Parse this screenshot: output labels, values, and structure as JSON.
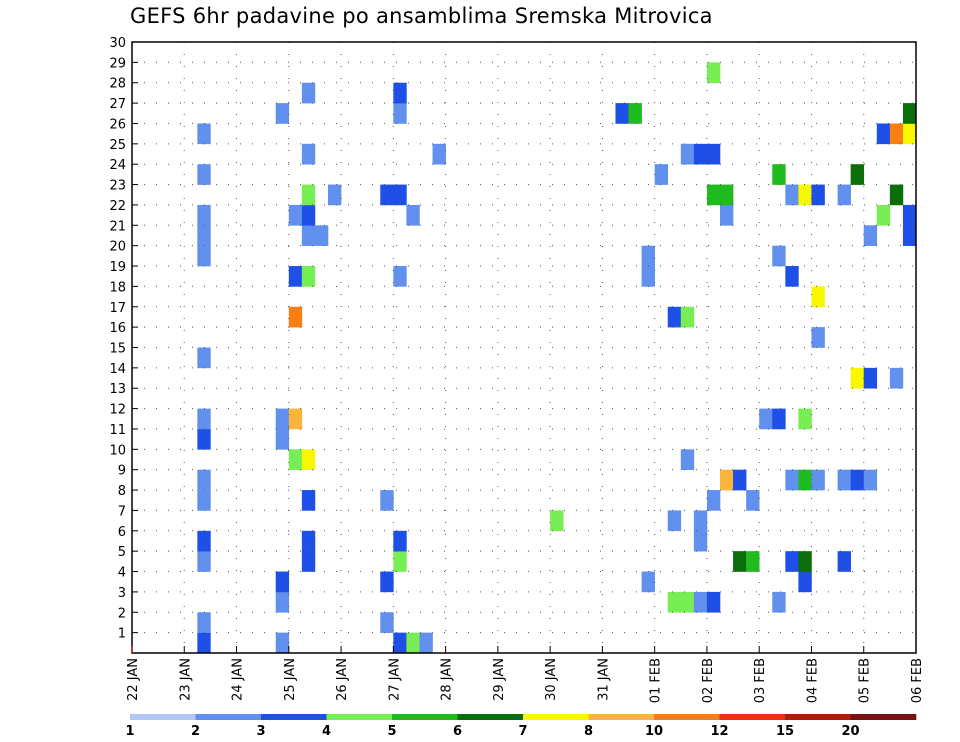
{
  "chart_data": {
    "type": "heatmap",
    "title": "GEFS 6hr padavine po ansamblima Sremska Mitrovica",
    "xlabel": "",
    "ylabel": "",
    "grid": true,
    "x_tick_labels": [
      "22 JAN",
      "23 JAN",
      "24 JAN",
      "25 JAN",
      "26 JAN",
      "27 JAN",
      "28 JAN",
      "29 JAN",
      "30 JAN",
      "31 JAN",
      "01 FEB",
      "02 FEB",
      "03 FEB",
      "04 FEB",
      "05 FEB",
      "06 FEB"
    ],
    "xlim": [
      0,
      60
    ],
    "x_unit": "6-hour steps from 22 JAN 00Z",
    "y_tick_labels": [
      "1",
      "2",
      "3",
      "4",
      "5",
      "6",
      "7",
      "8",
      "9",
      "10",
      "11",
      "12",
      "13",
      "14",
      "15",
      "16",
      "17",
      "18",
      "19",
      "20",
      "21",
      "22",
      "23",
      "24",
      "25",
      "26",
      "27",
      "28",
      "29",
      "30"
    ],
    "ylim": [
      0,
      30
    ],
    "colorbar": {
      "levels": [
        "1",
        "2",
        "3",
        "4",
        "5",
        "6",
        "7",
        "8",
        "10",
        "12",
        "15",
        "20"
      ],
      "colors": [
        "#b4c8f5",
        "#6190ef",
        "#1e4fe6",
        "#78ee55",
        "#1fbb1f",
        "#0a6e0a",
        "#f7f700",
        "#fcb43a",
        "#fb7e12",
        "#e63214",
        "#b31808",
        "#781212"
      ]
    },
    "cells": [
      {
        "t": 5,
        "m": 0,
        "v": 2
      },
      {
        "t": 5,
        "m": 1,
        "v": 1
      },
      {
        "t": 5,
        "m": 4,
        "v": 1
      },
      {
        "t": 5,
        "m": 5,
        "v": 2
      },
      {
        "t": 5,
        "m": 7,
        "v": 1
      },
      {
        "t": 5,
        "m": 8,
        "v": 1
      },
      {
        "t": 5,
        "m": 10,
        "v": 2
      },
      {
        "t": 5,
        "m": 11,
        "v": 1
      },
      {
        "t": 5,
        "m": 14,
        "v": 1
      },
      {
        "t": 5,
        "m": 19,
        "v": 1
      },
      {
        "t": 5,
        "m": 20,
        "v": 1
      },
      {
        "t": 5,
        "m": 21,
        "v": 1
      },
      {
        "t": 5,
        "m": 23,
        "v": 1
      },
      {
        "t": 5,
        "m": 25,
        "v": 1
      },
      {
        "t": 11,
        "m": 0,
        "v": 1
      },
      {
        "t": 11,
        "m": 2,
        "v": 1
      },
      {
        "t": 11,
        "m": 3,
        "v": 2
      },
      {
        "t": 11,
        "m": 10,
        "v": 1
      },
      {
        "t": 11,
        "m": 11,
        "v": 1
      },
      {
        "t": 11,
        "m": 26,
        "v": 1
      },
      {
        "t": 12,
        "m": 9,
        "v": 3
      },
      {
        "t": 12,
        "m": 11,
        "v": 7
      },
      {
        "t": 12,
        "m": 16,
        "v": 8
      },
      {
        "t": 12,
        "m": 18,
        "v": 2
      },
      {
        "t": 12,
        "m": 21,
        "v": 1
      },
      {
        "t": 13,
        "m": 4,
        "v": 2
      },
      {
        "t": 13,
        "m": 5,
        "v": 2
      },
      {
        "t": 13,
        "m": 7,
        "v": 2
      },
      {
        "t": 13,
        "m": 9,
        "v": 6
      },
      {
        "t": 13,
        "m": 18,
        "v": 3
      },
      {
        "t": 13,
        "m": 20,
        "v": 1
      },
      {
        "t": 13,
        "m": 21,
        "v": 2
      },
      {
        "t": 13,
        "m": 22,
        "v": 3
      },
      {
        "t": 13,
        "m": 24,
        "v": 1
      },
      {
        "t": 13,
        "m": 27,
        "v": 1
      },
      {
        "t": 14,
        "m": 20,
        "v": 1
      },
      {
        "t": 15,
        "m": 22,
        "v": 1
      },
      {
        "t": 19,
        "m": 1,
        "v": 1
      },
      {
        "t": 19,
        "m": 3,
        "v": 2
      },
      {
        "t": 19,
        "m": 7,
        "v": 1
      },
      {
        "t": 19,
        "m": 22,
        "v": 2
      },
      {
        "t": 20,
        "m": 0,
        "v": 2
      },
      {
        "t": 20,
        "m": 4,
        "v": 3
      },
      {
        "t": 20,
        "m": 5,
        "v": 2
      },
      {
        "t": 20,
        "m": 18,
        "v": 1
      },
      {
        "t": 20,
        "m": 22,
        "v": 2
      },
      {
        "t": 20,
        "m": 26,
        "v": 1
      },
      {
        "t": 20,
        "m": 27,
        "v": 2
      },
      {
        "t": 21,
        "m": 0,
        "v": 3
      },
      {
        "t": 21,
        "m": 21,
        "v": 1
      },
      {
        "t": 22,
        "m": 0,
        "v": 1
      },
      {
        "t": 23,
        "m": 24,
        "v": 1
      },
      {
        "t": 32,
        "m": 6,
        "v": 3
      },
      {
        "t": 37,
        "m": 26,
        "v": 2
      },
      {
        "t": 38,
        "m": 26,
        "v": 4
      },
      {
        "t": 39,
        "m": 3,
        "v": 1
      },
      {
        "t": 39,
        "m": 18,
        "v": 1
      },
      {
        "t": 39,
        "m": 19,
        "v": 1
      },
      {
        "t": 40,
        "m": 23,
        "v": 1
      },
      {
        "t": 41,
        "m": 6,
        "v": 1
      },
      {
        "t": 41,
        "m": 2,
        "v": 3
      },
      {
        "t": 41,
        "m": 16,
        "v": 2
      },
      {
        "t": 42,
        "m": 2,
        "v": 3
      },
      {
        "t": 42,
        "m": 9,
        "v": 1
      },
      {
        "t": 42,
        "m": 16,
        "v": 3
      },
      {
        "t": 42,
        "m": 24,
        "v": 1
      },
      {
        "t": 43,
        "m": 2,
        "v": 1
      },
      {
        "t": 43,
        "m": 5,
        "v": 1
      },
      {
        "t": 43,
        "m": 6,
        "v": 1
      },
      {
        "t": 43,
        "m": 24,
        "v": 2
      },
      {
        "t": 44,
        "m": 2,
        "v": 2
      },
      {
        "t": 44,
        "m": 7,
        "v": 1
      },
      {
        "t": 44,
        "m": 24,
        "v": 2
      },
      {
        "t": 44,
        "m": 28,
        "v": 3
      },
      {
        "t": 44,
        "m": 22,
        "v": 4
      },
      {
        "t": 45,
        "m": 8,
        "v": 7
      },
      {
        "t": 45,
        "m": 21,
        "v": 1
      },
      {
        "t": 45,
        "m": 22,
        "v": 4
      },
      {
        "t": 46,
        "m": 4,
        "v": 5
      },
      {
        "t": 46,
        "m": 8,
        "v": 2
      },
      {
        "t": 47,
        "m": 4,
        "v": 4
      },
      {
        "t": 47,
        "m": 7,
        "v": 1
      },
      {
        "t": 48,
        "m": 11,
        "v": 1
      },
      {
        "t": 49,
        "m": 11,
        "v": 2
      },
      {
        "t": 49,
        "m": 2,
        "v": 1
      },
      {
        "t": 49,
        "m": 19,
        "v": 1
      },
      {
        "t": 49,
        "m": 23,
        "v": 4
      },
      {
        "t": 50,
        "m": 18,
        "v": 2
      },
      {
        "t": 50,
        "m": 22,
        "v": 1
      },
      {
        "t": 50,
        "m": 8,
        "v": 1
      },
      {
        "t": 50,
        "m": 4,
        "v": 2
      },
      {
        "t": 51,
        "m": 3,
        "v": 2
      },
      {
        "t": 51,
        "m": 4,
        "v": 5
      },
      {
        "t": 51,
        "m": 8,
        "v": 4
      },
      {
        "t": 51,
        "m": 11,
        "v": 3
      },
      {
        "t": 51,
        "m": 22,
        "v": 6
      },
      {
        "t": 52,
        "m": 8,
        "v": 1
      },
      {
        "t": 52,
        "m": 15,
        "v": 1
      },
      {
        "t": 52,
        "m": 17,
        "v": 6
      },
      {
        "t": 52,
        "m": 22,
        "v": 2
      },
      {
        "t": 54,
        "m": 4,
        "v": 2
      },
      {
        "t": 54,
        "m": 8,
        "v": 1
      },
      {
        "t": 54,
        "m": 22,
        "v": 1
      },
      {
        "t": 55,
        "m": 8,
        "v": 2
      },
      {
        "t": 55,
        "m": 13,
        "v": 6
      },
      {
        "t": 55,
        "m": 23,
        "v": 5
      },
      {
        "t": 56,
        "m": 13,
        "v": 2
      },
      {
        "t": 56,
        "m": 8,
        "v": 1
      },
      {
        "t": 56,
        "m": 20,
        "v": 1
      },
      {
        "t": 57,
        "m": 21,
        "v": 3
      },
      {
        "t": 57,
        "m": 25,
        "v": 2
      },
      {
        "t": 58,
        "m": 13,
        "v": 1
      },
      {
        "t": 58,
        "m": 22,
        "v": 5
      },
      {
        "t": 58,
        "m": 25,
        "v": 8
      },
      {
        "t": 59,
        "m": 20,
        "v": 2
      },
      {
        "t": 59,
        "m": 21,
        "v": 2
      },
      {
        "t": 59,
        "m": 25,
        "v": 6
      },
      {
        "t": 59,
        "m": 26,
        "v": 5
      }
    ]
  }
}
